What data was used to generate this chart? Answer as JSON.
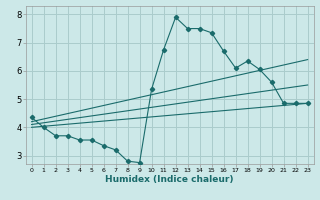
{
  "title": "",
  "xlabel": "Humidex (Indice chaleur)",
  "bg_color": "#cce8e8",
  "grid_color": "#aacccc",
  "line_color": "#1a6b6b",
  "xlim": [
    -0.5,
    23.5
  ],
  "ylim": [
    2.7,
    8.3
  ],
  "xticks": [
    0,
    1,
    2,
    3,
    4,
    5,
    6,
    7,
    8,
    9,
    10,
    11,
    12,
    13,
    14,
    15,
    16,
    17,
    18,
    19,
    20,
    21,
    22,
    23
  ],
  "yticks": [
    3,
    4,
    5,
    6,
    7,
    8
  ],
  "line1_x": [
    0,
    1,
    2,
    3,
    4,
    5,
    6,
    7,
    8,
    9,
    10,
    11,
    12,
    13,
    14,
    15,
    16,
    17,
    18,
    19,
    20,
    21,
    22,
    23
  ],
  "line1_y": [
    4.35,
    4.0,
    3.7,
    3.7,
    3.55,
    3.55,
    3.35,
    3.2,
    2.8,
    2.75,
    5.35,
    6.75,
    7.9,
    7.5,
    7.5,
    7.35,
    6.7,
    6.1,
    6.35,
    6.05,
    5.6,
    4.85,
    4.85,
    4.85
  ],
  "line2_x": [
    0,
    23
  ],
  "line2_y": [
    4.2,
    6.4
  ],
  "line3_x": [
    0,
    23
  ],
  "line3_y": [
    4.1,
    5.5
  ],
  "line4_x": [
    0,
    23
  ],
  "line4_y": [
    4.0,
    4.85
  ]
}
